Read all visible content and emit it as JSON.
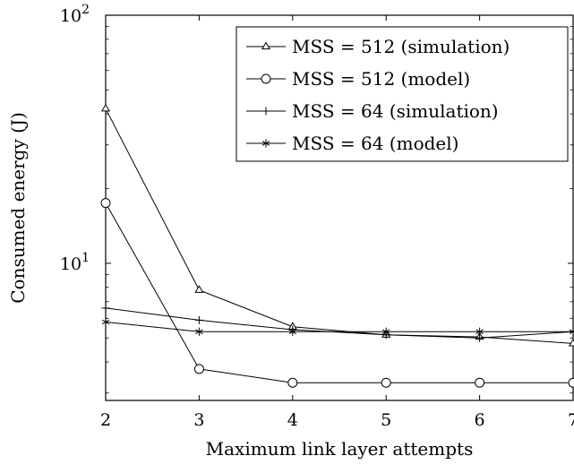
{
  "chart_data": {
    "type": "line",
    "title": "",
    "xlabel": "Maximum link layer attempts",
    "ylabel": "Consumed energy (J)",
    "x": [
      2,
      3,
      4,
      5,
      6,
      7
    ],
    "xlim": [
      2,
      7
    ],
    "ylim": [
      2.8,
      100
    ],
    "yscale": "log",
    "x_ticks": [
      "2",
      "3",
      "4",
      "5",
      "6",
      "7"
    ],
    "y_ticks": [
      {
        "value": 10,
        "base": "10",
        "exp": "1"
      },
      {
        "value": 100,
        "base": "10",
        "exp": "2"
      }
    ],
    "grid": false,
    "legend_position": "top-right",
    "series": [
      {
        "name": "MSS = 512 (simulation)",
        "marker": "triangle",
        "values": [
          42,
          7.8,
          5.55,
          5.15,
          5.05,
          4.75
        ]
      },
      {
        "name": "MSS = 512 (model)",
        "marker": "circle",
        "values": [
          17.5,
          3.75,
          3.3,
          3.3,
          3.3,
          3.3
        ]
      },
      {
        "name": "MSS = 64 (simulation)",
        "marker": "plus",
        "values": [
          6.6,
          5.9,
          5.4,
          5.15,
          5.0,
          5.3
        ]
      },
      {
        "name": "MSS = 64 (model)",
        "marker": "asterisk",
        "values": [
          5.8,
          5.3,
          5.3,
          5.3,
          5.3,
          5.3
        ]
      }
    ]
  }
}
